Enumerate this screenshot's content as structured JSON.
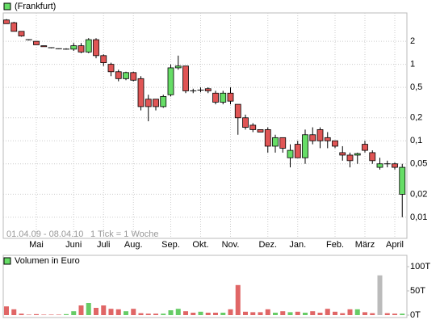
{
  "chart_data": [
    {
      "type": "candlestick",
      "series": [
        {
          "name": "(Frankfurt)",
          "open": [
            3.8,
            3.5,
            2.7,
            2.1,
            2.0,
            1.75,
            1.65,
            1.6,
            1.58,
            1.58,
            1.75,
            1.45,
            2.1,
            1.3,
            1.0,
            0.8,
            0.65,
            0.78,
            0.65,
            0.35,
            0.35,
            0.28,
            0.4,
            0.9,
            0.95,
            0.45,
            0.46,
            0.48,
            0.42,
            0.32,
            0.42,
            0.3,
            0.2,
            0.16,
            0.14,
            0.14,
            0.085,
            0.11,
            0.06,
            0.09,
            0.06,
            0.12,
            0.14,
            0.11,
            0.1,
            0.07,
            0.065,
            0.065,
            0.09,
            0.07,
            0.045,
            0.05,
            0.05,
            0.02
          ],
          "high": [
            3.9,
            3.6,
            2.7,
            2.1,
            2.0,
            1.75,
            1.65,
            1.6,
            1.62,
            1.9,
            1.9,
            2.2,
            2.2,
            1.35,
            1.05,
            0.85,
            0.8,
            0.8,
            0.7,
            0.4,
            0.35,
            0.4,
            1.0,
            1.3,
            0.95,
            0.48,
            0.5,
            0.5,
            0.45,
            0.45,
            0.5,
            0.3,
            0.22,
            0.17,
            0.14,
            0.15,
            0.12,
            0.11,
            0.09,
            0.1,
            0.14,
            0.15,
            0.15,
            0.13,
            0.1,
            0.085,
            0.07,
            0.07,
            0.1,
            0.075,
            0.06,
            0.055,
            0.052,
            0.05
          ],
          "low": [
            3.4,
            2.7,
            2.3,
            2.05,
            1.8,
            1.7,
            1.62,
            1.58,
            1.56,
            1.5,
            1.4,
            1.4,
            1.2,
            0.95,
            0.7,
            0.6,
            0.62,
            0.6,
            0.25,
            0.18,
            0.25,
            0.27,
            0.38,
            0.85,
            0.42,
            0.42,
            0.43,
            0.42,
            0.3,
            0.3,
            0.3,
            0.12,
            0.14,
            0.13,
            0.13,
            0.07,
            0.07,
            0.07,
            0.045,
            0.06,
            0.05,
            0.09,
            0.08,
            0.08,
            0.08,
            0.055,
            0.045,
            0.05,
            0.07,
            0.05,
            0.042,
            0.045,
            0.042,
            0.01
          ],
          "close": [
            3.4,
            2.7,
            2.35,
            2.05,
            1.8,
            1.7,
            1.62,
            1.58,
            1.6,
            1.75,
            1.45,
            2.1,
            1.3,
            1.05,
            0.8,
            0.65,
            0.78,
            0.62,
            0.28,
            0.28,
            0.28,
            0.38,
            0.9,
            0.95,
            0.45,
            0.44,
            0.47,
            0.45,
            0.32,
            0.42,
            0.33,
            0.2,
            0.15,
            0.14,
            0.13,
            0.085,
            0.11,
            0.08,
            0.075,
            0.06,
            0.12,
            0.1,
            0.1,
            0.1,
            0.085,
            0.065,
            0.055,
            0.068,
            0.075,
            0.055,
            0.05,
            0.05,
            0.045,
            0.045
          ]
        }
      ],
      "categories": [
        null,
        null,
        null,
        null,
        "Mai",
        null,
        null,
        null,
        null,
        "Juni",
        null,
        null,
        null,
        "Juli",
        null,
        null,
        null,
        "Aug.",
        null,
        null,
        null,
        null,
        "Sep.",
        null,
        null,
        null,
        "Okt.",
        null,
        null,
        null,
        "Nov.",
        null,
        null,
        null,
        null,
        "Dez.",
        null,
        null,
        null,
        "Jan.",
        null,
        null,
        null,
        null,
        "Feb.",
        null,
        null,
        null,
        "März",
        null,
        null,
        null,
        "April",
        null
      ],
      "up_color": "#66dd66",
      "down_color": "#e05555",
      "legend_color": "#66dd66",
      "log_scale": true,
      "grid": true,
      "ylim": [
        0.0053,
        4.7
      ],
      "yticks": [
        {
          "value": 0.01,
          "label": "0,01"
        },
        {
          "value": 0.02,
          "label": "0,02"
        },
        {
          "value": 0.05,
          "label": "0,05"
        },
        {
          "value": 0.1,
          "label": "0,1"
        },
        {
          "value": 0.2,
          "label": "0,2"
        },
        {
          "value": 0.5,
          "label": "0,5"
        },
        1,
        2
      ],
      "annotations": [
        "01.04.09 - 08.04.10",
        "1 Tick = 1 Woche"
      ]
    },
    {
      "type": "bar",
      "series": [
        {
          "name": "Volumen in Euro",
          "values": [
            18,
            12,
            3,
            1,
            2,
            1,
            1,
            1,
            2,
            8,
            20,
            25,
            15,
            20,
            13,
            12,
            8,
            13,
            4,
            3,
            3,
            3,
            10,
            13,
            8,
            5,
            7,
            5,
            5,
            5,
            12,
            62,
            7,
            6,
            6,
            12,
            5,
            8,
            6,
            7,
            5,
            8,
            5,
            13,
            7,
            4,
            12,
            12,
            6,
            4,
            82,
            4,
            3,
            3
          ],
          "colors": [
            "#e06666",
            "#e06666",
            "#e06666",
            "#e06666",
            "#e06666",
            "#e06666",
            "#e06666",
            "#e06666",
            "#66cc66",
            "#66cc66",
            "#e06666",
            "#66cc66",
            "#e06666",
            "#e06666",
            "#e06666",
            "#e06666",
            "#66cc66",
            "#e06666",
            "#e06666",
            "#e06666",
            "#e06666",
            "#66cc66",
            "#66cc66",
            "#66cc66",
            "#e06666",
            "#e06666",
            "#66cc66",
            "#e06666",
            "#e06666",
            "#66cc66",
            "#e06666",
            "#e06666",
            "#e06666",
            "#e06666",
            "#e06666",
            "#e06666",
            "#66cc66",
            "#e06666",
            "#66cc66",
            "#e06666",
            "#66cc66",
            "#e06666",
            "#e06666",
            "#e06666",
            "#e06666",
            "#e06666",
            "#e06666",
            "#66cc66",
            "#e06666",
            "#e06666",
            "#bbbbbb",
            "#e06666",
            "#e06666",
            "#66cc66"
          ]
        }
      ],
      "legend_color": "#66dd66",
      "ylim": [
        0,
        100
      ],
      "yticks": [
        {
          "value": 0,
          "label": "0T"
        },
        {
          "value": 50,
          "label": "50T"
        },
        {
          "value": 100,
          "label": "100T"
        }
      ]
    }
  ]
}
